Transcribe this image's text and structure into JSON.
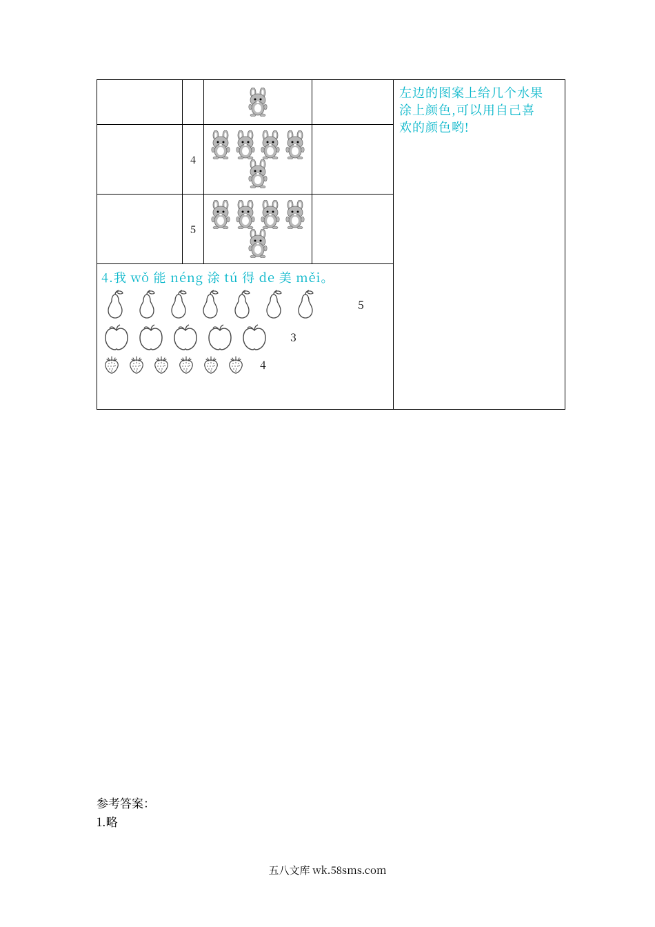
{
  "colors": {
    "highlight": "#00b4c8",
    "text": "#000000",
    "bunny_body": "#b8b8b8",
    "bunny_stroke": "#6a6a6a",
    "outline": "#444"
  },
  "bunny_table": {
    "rows": [
      {
        "label": "",
        "count": 1
      },
      {
        "label": "4",
        "count": 5
      },
      {
        "label": "5",
        "count": 5
      }
    ]
  },
  "q4": {
    "title": "4.我 wǒ 能 néng 涂 tú 得 de 美 měi。",
    "pears": {
      "count": 7,
      "label": "5"
    },
    "apples": {
      "count": 5,
      "label": "3"
    },
    "strawberries": {
      "count": 6,
      "label": "4"
    }
  },
  "side_note_lines": [
    "左边的图案上给几个水果",
    "涂上颜色,可以用自己喜",
    "欢的颜色哟!"
  ],
  "answers": {
    "heading": "参考答案：",
    "line1": "1.略"
  },
  "footer": "五八文库 wk.58sms.com"
}
